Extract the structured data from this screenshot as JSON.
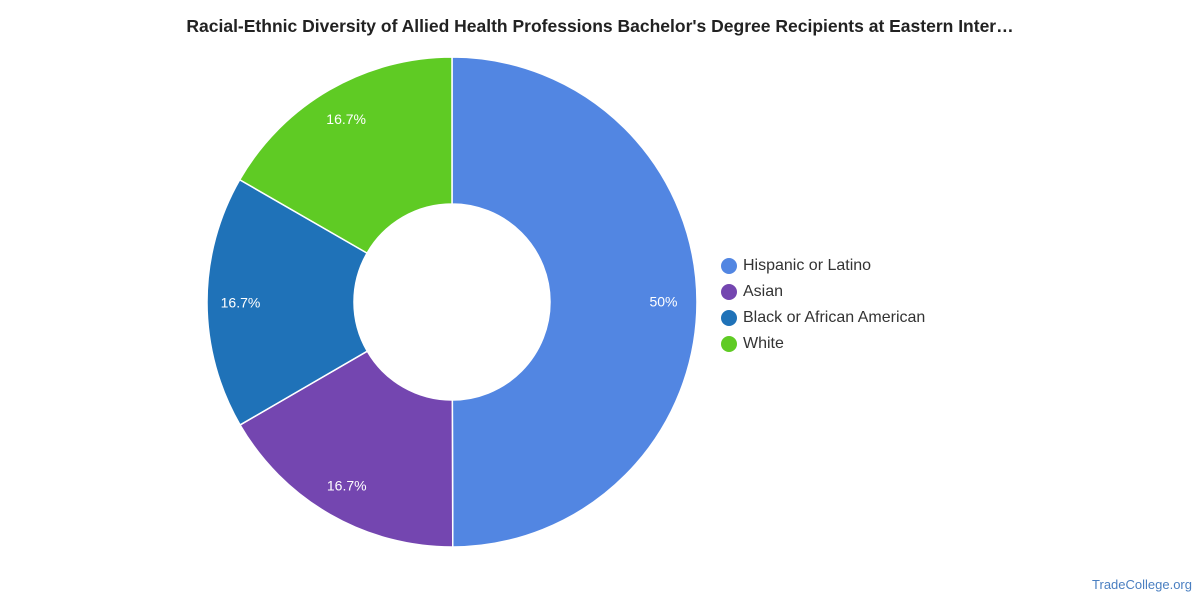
{
  "chart_data": {
    "type": "pie",
    "variant": "donut",
    "title": "Racial-Ethnic Diversity of Allied Health Professions Bachelor's Degree Recipients at Eastern Inter…",
    "categories": [
      "Hispanic or Latino",
      "Asian",
      "Black or African American",
      "White"
    ],
    "values": [
      50,
      16.7,
      16.7,
      16.7
    ],
    "labels": [
      "50%",
      "16.7%",
      "16.7%",
      "16.7%"
    ],
    "colors": [
      "#5286e2",
      "#7446b0",
      "#1f72b8",
      "#5fcb24"
    ],
    "legend_position": "right"
  },
  "watermark": "TradeCollege.org"
}
